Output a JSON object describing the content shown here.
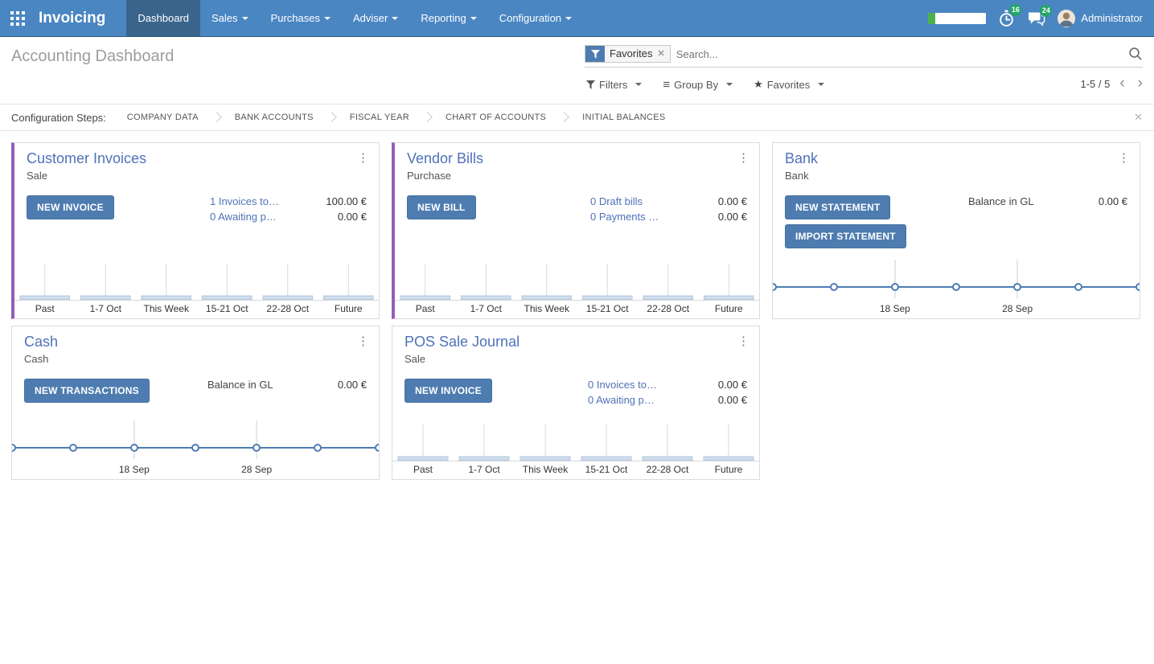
{
  "navbar": {
    "brand": "Invoicing",
    "menus": [
      {
        "label": "Dashboard",
        "active": true,
        "has_dropdown": false
      },
      {
        "label": "Sales",
        "active": false,
        "has_dropdown": true
      },
      {
        "label": "Purchases",
        "active": false,
        "has_dropdown": true
      },
      {
        "label": "Adviser",
        "active": false,
        "has_dropdown": true
      },
      {
        "label": "Reporting",
        "active": false,
        "has_dropdown": true
      },
      {
        "label": "Configuration",
        "active": false,
        "has_dropdown": true
      }
    ],
    "systray": {
      "progress_percent": 12,
      "activities_badge": "16",
      "messages_badge": "24",
      "user_name": "Administrator"
    }
  },
  "control_panel": {
    "title": "Accounting Dashboard",
    "search": {
      "facet_label": "Favorites",
      "placeholder": "Search..."
    },
    "filter_buttons": {
      "filters": "Filters",
      "group_by": "Group By",
      "favorites": "Favorites"
    },
    "pager": {
      "range": "1-5 / 5"
    }
  },
  "config_steps": {
    "label": "Configuration Steps:",
    "steps": [
      "COMPANY DATA",
      "BANK ACCOUNTS",
      "FISCAL YEAR",
      "CHART OF ACCOUNTS",
      "INITIAL BALANCES"
    ]
  },
  "cards": [
    {
      "title": "Customer Invoices",
      "subtitle": "Sale",
      "accent": true,
      "buttons": [
        "NEW INVOICE"
      ],
      "rows": [
        {
          "link": "1 Invoices to…",
          "value": "100.00 €"
        },
        {
          "link": "0 Awaiting p…",
          "value": "0.00 €"
        }
      ],
      "chart": {
        "type": "bar",
        "categories": [
          "Past",
          "1-7 Oct",
          "This Week",
          "15-21 Oct",
          "22-28 Oct",
          "Future"
        ],
        "values": [
          0,
          0,
          0,
          0,
          0,
          0
        ]
      }
    },
    {
      "title": "Vendor Bills",
      "subtitle": "Purchase",
      "accent": true,
      "buttons": [
        "NEW BILL"
      ],
      "rows": [
        {
          "link": "0 Draft bills",
          "value": "0.00 €"
        },
        {
          "link": "0 Payments …",
          "value": "0.00 €"
        }
      ],
      "chart": {
        "type": "bar",
        "categories": [
          "Past",
          "1-7 Oct",
          "This Week",
          "15-21 Oct",
          "22-28 Oct",
          "Future"
        ],
        "values": [
          0,
          0,
          0,
          0,
          0,
          0
        ]
      }
    },
    {
      "title": "Bank",
      "subtitle": "Bank",
      "accent": false,
      "buttons": [
        "NEW STATEMENT",
        "IMPORT STATEMENT"
      ],
      "rows": [
        {
          "label": "Balance in GL",
          "value": "0.00 €"
        }
      ],
      "chart": {
        "type": "line",
        "values": [
          0,
          0,
          0,
          0,
          0,
          0,
          0
        ],
        "x_ticks": [
          {
            "index": 2,
            "label": "18 Sep"
          },
          {
            "index": 4,
            "label": "28 Sep"
          }
        ]
      }
    },
    {
      "title": "Cash",
      "subtitle": "Cash",
      "accent": false,
      "buttons": [
        "NEW TRANSACTIONS"
      ],
      "rows": [
        {
          "label": "Balance in GL",
          "value": "0.00 €"
        }
      ],
      "chart": {
        "type": "line",
        "values": [
          0,
          0,
          0,
          0,
          0,
          0,
          0
        ],
        "x_ticks": [
          {
            "index": 2,
            "label": "18 Sep"
          },
          {
            "index": 4,
            "label": "28 Sep"
          }
        ]
      }
    },
    {
      "title": "POS Sale Journal",
      "subtitle": "Sale",
      "accent": false,
      "buttons": [
        "NEW INVOICE"
      ],
      "rows": [
        {
          "link": "0 Invoices to…",
          "value": "0.00 €"
        },
        {
          "link": "0 Awaiting p…",
          "value": "0.00 €"
        }
      ],
      "chart": {
        "type": "bar",
        "categories": [
          "Past",
          "1-7 Oct",
          "This Week",
          "15-21 Oct",
          "22-28 Oct",
          "Future"
        ],
        "values": [
          0,
          0,
          0,
          0,
          0,
          0
        ]
      }
    }
  ],
  "colors": {
    "navbar_blue": "#4a86c2",
    "active_menu_blue": "#3a648c",
    "primary_button_blue": "#4e7cb0",
    "link_blue": "#4f72b8",
    "accent_purple": "#945eb8",
    "badge_green": "#23a567",
    "progress_green": "#4cb04a",
    "sparkline_blue": "#4e7cb4"
  }
}
